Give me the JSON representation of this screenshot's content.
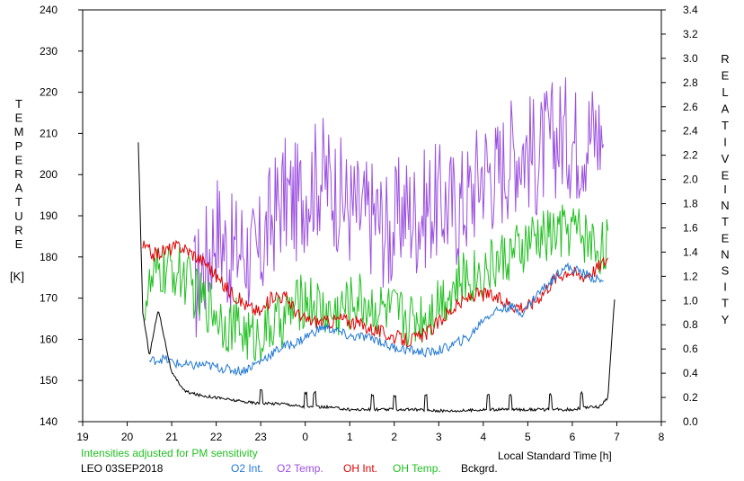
{
  "chart_data": {
    "type": "line",
    "left_axis_title": "TEMPERATURE",
    "left_axis_unit": "[K]",
    "right_axis_title_words": [
      "RELATIVE",
      "INTENSITY"
    ],
    "xlabel": "Local Standard Time [h]",
    "xlim": [
      19,
      8
    ],
    "ylim_left": [
      140,
      240
    ],
    "ylim_right": [
      0.0,
      3.4
    ],
    "x_ticks": [
      "19",
      "20",
      "21",
      "22",
      "23",
      "0",
      "1",
      "2",
      "3",
      "4",
      "5",
      "6",
      "7",
      "8"
    ],
    "y_left_ticks": [
      "140",
      "150",
      "160",
      "170",
      "180",
      "190",
      "200",
      "210",
      "220",
      "230",
      "240"
    ],
    "y_right_ticks": [
      "0.0",
      "0.2",
      "0.4",
      "0.6",
      "0.8",
      "1.0",
      "1.2",
      "1.4",
      "1.6",
      "1.8",
      "2.0",
      "2.2",
      "2.4",
      "2.6",
      "2.8",
      "3.0",
      "3.2",
      "3.4"
    ],
    "annotation": "Intensities adjusted for PM sensitivity",
    "station_label": "LEO 03SEP2018",
    "legend": [
      {
        "label": "O2 Int.",
        "color": "#1f77d4"
      },
      {
        "label": "O2 Temp.",
        "color": "#9b4fe0"
      },
      {
        "label": "OH Int.",
        "color": "#e00000"
      },
      {
        "label": "OH Temp.",
        "color": "#22c022"
      },
      {
        "label": "Bckgrd.",
        "color": "#000000"
      }
    ],
    "grid": false,
    "series": [
      {
        "name": "O2 Temp.",
        "axis": "left",
        "color": "#9b4fe0",
        "x": [
          21.5,
          21.8,
          22.0,
          22.3,
          22.6,
          22.9,
          23.2,
          23.5,
          23.8,
          24.1,
          24.4,
          24.7,
          25.0,
          25.3,
          25.6,
          25.9,
          26.2,
          26.5,
          26.8,
          27.1,
          27.4,
          27.7,
          28.0,
          28.3,
          28.6,
          28.9,
          29.2,
          29.5,
          29.8,
          30.1,
          30.4,
          30.7
        ],
        "values": [
          172,
          180,
          188,
          180,
          183,
          178,
          188,
          195,
          193,
          198,
          200,
          196,
          192,
          190,
          190,
          185,
          192,
          190,
          193,
          193,
          192,
          195,
          202,
          200,
          205,
          207,
          204,
          208,
          210,
          208,
          210,
          210
        ]
      },
      {
        "name": "OH Temp.",
        "axis": "left",
        "color": "#22c022",
        "x": [
          20.4,
          20.7,
          21.0,
          21.3,
          21.6,
          21.9,
          22.2,
          22.5,
          22.8,
          23.1,
          23.4,
          23.7,
          24.0,
          24.3,
          24.6,
          24.9,
          25.2,
          25.5,
          25.8,
          26.1,
          26.4,
          26.7,
          27.0,
          27.3,
          27.6,
          27.9,
          28.2,
          28.5,
          28.8,
          29.1,
          29.4,
          29.7,
          30.0,
          30.3,
          30.6,
          30.8
        ],
        "values": [
          170,
          176,
          177,
          175,
          170,
          168,
          164,
          163,
          160,
          162,
          164,
          167,
          170,
          168,
          166,
          168,
          170,
          168,
          167,
          166,
          165,
          166,
          170,
          172,
          175,
          176,
          178,
          180,
          181,
          184,
          185,
          186,
          187,
          185,
          182,
          184
        ]
      },
      {
        "name": "OH Int.",
        "axis": "right",
        "color": "#e00000",
        "x": [
          20.35,
          20.6,
          20.9,
          21.2,
          21.5,
          21.8,
          22.1,
          22.4,
          22.7,
          23.0,
          23.3,
          23.6,
          23.9,
          24.2,
          24.5,
          24.8,
          25.1,
          25.4,
          25.7,
          26.0,
          26.3,
          26.6,
          26.9,
          27.2,
          27.5,
          27.8,
          28.1,
          28.4,
          28.7,
          29.0,
          29.3,
          29.6,
          29.9,
          30.2,
          30.5,
          30.8
        ],
        "values": [
          1.45,
          1.38,
          1.42,
          1.45,
          1.38,
          1.3,
          1.15,
          1.05,
          0.95,
          0.9,
          1.05,
          1.02,
          0.85,
          0.83,
          0.82,
          0.85,
          0.82,
          0.78,
          0.74,
          0.7,
          0.67,
          0.7,
          0.78,
          0.9,
          0.98,
          1.05,
          1.05,
          1.0,
          0.96,
          0.95,
          1.05,
          1.18,
          1.25,
          1.2,
          1.25,
          1.35
        ]
      },
      {
        "name": "O2 Int.",
        "axis": "right",
        "color": "#1f77d4",
        "x": [
          20.5,
          20.8,
          21.1,
          21.4,
          21.7,
          22.0,
          22.3,
          22.6,
          22.9,
          23.2,
          23.5,
          23.8,
          24.1,
          24.4,
          24.7,
          25.0,
          25.3,
          25.6,
          25.9,
          26.2,
          26.5,
          26.8,
          27.1,
          27.4,
          27.7,
          28.0,
          28.3,
          28.6,
          28.9,
          29.2,
          29.5,
          29.8,
          30.1,
          30.4,
          30.7
        ],
        "values": [
          0.5,
          0.52,
          0.48,
          0.46,
          0.47,
          0.45,
          0.43,
          0.42,
          0.48,
          0.55,
          0.62,
          0.65,
          0.72,
          0.78,
          0.75,
          0.7,
          0.7,
          0.68,
          0.62,
          0.6,
          0.58,
          0.57,
          0.6,
          0.65,
          0.7,
          0.85,
          0.92,
          0.95,
          0.9,
          1.05,
          1.15,
          1.28,
          1.25,
          1.2,
          1.15
        ]
      },
      {
        "name": "Bckgrd.",
        "axis": "right",
        "color": "#000000",
        "x": [
          20.25,
          20.35,
          20.5,
          20.7,
          21.0,
          21.3,
          21.6,
          22.0,
          22.5,
          23.0,
          23.5,
          24.0,
          24.5,
          25.0,
          25.5,
          26.0,
          26.5,
          27.0,
          27.5,
          28.0,
          28.5,
          29.0,
          29.5,
          30.0,
          30.3,
          30.6,
          30.8,
          30.95
        ],
        "values": [
          2.3,
          0.9,
          0.55,
          0.93,
          0.4,
          0.25,
          0.22,
          0.2,
          0.17,
          0.15,
          0.15,
          0.12,
          0.12,
          0.1,
          0.1,
          0.1,
          0.1,
          0.09,
          0.09,
          0.1,
          0.1,
          0.1,
          0.1,
          0.1,
          0.12,
          0.12,
          0.2,
          1.02
        ]
      }
    ]
  }
}
